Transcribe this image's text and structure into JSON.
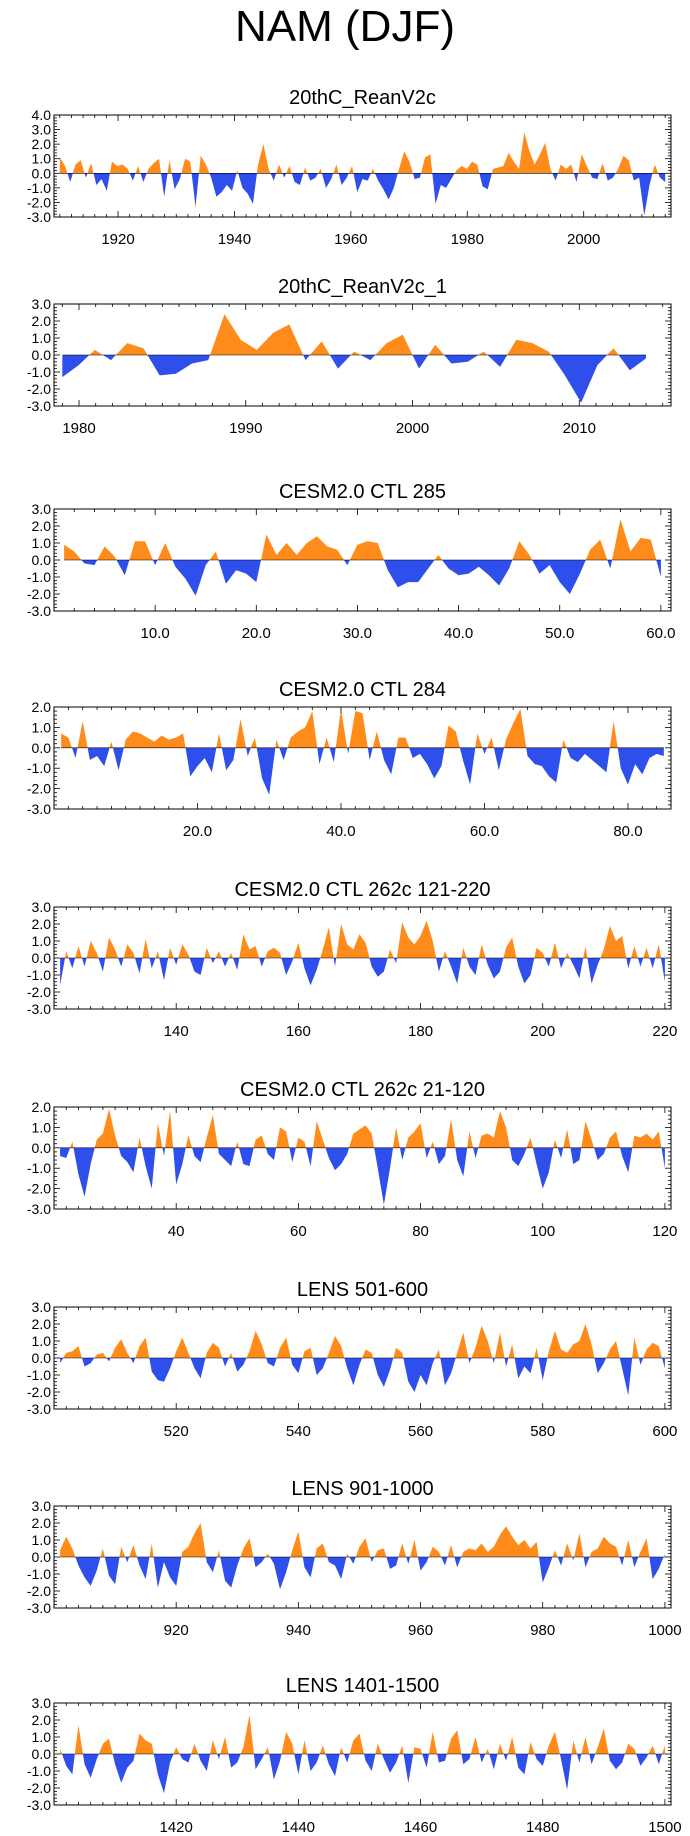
{
  "figure_title": "NAM (DJF)",
  "colors": {
    "positive": "#FF8C1A",
    "negative": "#2E4FEB",
    "frame": "#000000"
  },
  "chart_data": [
    {
      "type": "area",
      "title": "20thC_ReanV2c",
      "x_start": 1910,
      "x_end": 2014,
      "xlim": [
        1909,
        2015
      ],
      "xticks": [
        1920,
        1940,
        1960,
        1980,
        2000
      ],
      "xtick_labels": [
        "1920",
        "1940",
        "1960",
        "1980",
        "2000"
      ],
      "ylim": [
        -3,
        4
      ],
      "yticks": [
        4,
        3,
        2,
        1,
        0,
        -1,
        -2,
        -3
      ],
      "ytick_labels": [
        "4.0",
        "3.0",
        "2.0",
        "1.0",
        "0.0",
        "-1.0",
        "-2.0",
        "-3.0"
      ],
      "values": [
        1.1,
        0.5,
        -0.6,
        0.6,
        0.9,
        -0.3,
        0.7,
        -0.8,
        -0.4,
        -1.2,
        0.8,
        0.5,
        0.6,
        0.3,
        -0.5,
        0.5,
        -0.6,
        0.3,
        0.7,
        1.0,
        -1.6,
        0.9,
        -1.1,
        -0.4,
        1.0,
        0.8,
        -2.3,
        1.2,
        0.6,
        -0.3,
        -1.6,
        -1.3,
        -0.8,
        -1.2,
        0.2,
        -1.0,
        -1.4,
        -2.1,
        0.6,
        2.0,
        0.3,
        -0.5,
        0.6,
        -0.3,
        0.5,
        -0.6,
        -0.8,
        0.4,
        -0.5,
        -0.3,
        0.3,
        -1.0,
        -0.4,
        0.6,
        -0.8,
        -0.3,
        0.5,
        -1.3,
        -0.4,
        -0.5,
        0.3,
        -0.5,
        -1.1,
        -1.8,
        -1.0,
        0.3,
        1.5,
        0.8,
        -0.4,
        -0.3,
        1.1,
        1.3,
        -2.1,
        -0.8,
        -1.0,
        -0.4,
        0.2,
        0.5,
        0.3,
        0.8,
        0.6,
        -0.9,
        -1.1,
        0.3,
        0.4,
        0.5,
        1.4,
        0.8,
        0.3,
        2.8,
        1.5,
        0.6,
        1.3,
        2.1,
        0.3,
        -0.5,
        0.6,
        0.3,
        0.6,
        -0.6,
        1.3,
        0.5,
        -0.3,
        -0.4,
        0.7,
        -0.5,
        -0.3,
        0.3,
        1.2,
        0.9,
        -0.5,
        -0.3,
        -2.9,
        -0.8,
        0.6,
        -0.3,
        -0.6
      ]
    },
    {
      "type": "area",
      "title": "20thC_ReanV2c_1",
      "x_start": 1979,
      "x_end": 2014,
      "xlim": [
        1978.5,
        2015.5
      ],
      "xticks": [
        1980,
        1990,
        2000,
        2010
      ],
      "xtick_labels": [
        "1980",
        "1990",
        "2000",
        "2010"
      ],
      "ylim": [
        -3,
        3
      ],
      "yticks": [
        3,
        2,
        1,
        0,
        -1,
        -2,
        -3
      ],
      "ytick_labels": [
        "3.0",
        "2.0",
        "1.0",
        "0.0",
        "-1.0",
        "-2.0",
        "-3.0"
      ],
      "values": [
        -1.3,
        -0.6,
        0.3,
        -0.3,
        0.7,
        0.4,
        -1.2,
        -1.1,
        -0.5,
        -0.3,
        2.4,
        0.9,
        0.3,
        1.3,
        1.8,
        -0.3,
        0.8,
        -0.8,
        0.2,
        -0.3,
        0.7,
        1.2,
        -0.8,
        0.6,
        -0.5,
        -0.4,
        0.2,
        -0.7,
        0.9,
        0.7,
        0.2,
        -1.2,
        -2.8,
        -0.6,
        0.4,
        -0.9,
        -0.2
      ]
    },
    {
      "type": "area",
      "title": "CESM2.0 CTL 285",
      "x_start": 1,
      "x_end": 60,
      "xlim": [
        0,
        61
      ],
      "xticks": [
        10,
        20,
        30,
        40,
        50,
        60
      ],
      "xtick_labels": [
        "10.0",
        "20.0",
        "30.0",
        "40.0",
        "50.0",
        "60.0"
      ],
      "ylim": [
        -3,
        3
      ],
      "yticks": [
        3,
        2,
        1,
        0,
        -1,
        -2,
        -3
      ],
      "ytick_labels": [
        "3.0",
        "2.0",
        "1.0",
        "0.0",
        "-1.0",
        "-2.0",
        "-3.0"
      ],
      "values": [
        0.9,
        0.5,
        -0.2,
        -0.3,
        0.8,
        0.2,
        -0.9,
        1.1,
        1.1,
        -0.3,
        1.0,
        -0.4,
        -1.1,
        -2.1,
        -0.3,
        0.5,
        -1.4,
        -0.6,
        -0.8,
        -1.3,
        1.5,
        0.3,
        1.0,
        0.3,
        1.0,
        1.4,
        0.8,
        0.6,
        -0.3,
        0.9,
        1.1,
        1.0,
        -0.6,
        -1.6,
        -1.3,
        -1.3,
        -0.5,
        0.3,
        -0.5,
        -0.9,
        -0.8,
        -0.4,
        -0.9,
        -1.5,
        -0.5,
        1.1,
        0.3,
        -0.8,
        -0.3,
        -1.3,
        -2.0,
        -0.8,
        0.6,
        1.2,
        -0.5,
        2.4,
        0.5,
        1.3,
        1.2,
        -1.0
      ]
    },
    {
      "type": "area",
      "title": "CESM2.0 CTL 284",
      "x_start": 1,
      "x_end": 85,
      "xlim": [
        0,
        86
      ],
      "xticks": [
        20,
        40,
        60,
        80
      ],
      "xtick_labels": [
        "20.0",
        "40.0",
        "60.0",
        "80.0"
      ],
      "ylim": [
        -3,
        2
      ],
      "yticks": [
        2,
        1,
        0,
        -1,
        -2,
        -3
      ],
      "ytick_labels": [
        "2.0",
        "1.0",
        "0.0",
        "-1.0",
        "-2.0",
        "-3.0"
      ],
      "values": [
        0.7,
        0.5,
        -0.5,
        1.3,
        -0.6,
        -0.4,
        -0.9,
        0.3,
        -1.1,
        0.4,
        0.8,
        0.7,
        0.5,
        0.3,
        0.6,
        0.4,
        0.5,
        0.7,
        -1.4,
        -0.9,
        -0.5,
        -1.2,
        0.7,
        -1.1,
        -0.6,
        1.4,
        -0.4,
        0.5,
        -1.5,
        -2.3,
        0.4,
        -0.6,
        0.5,
        0.8,
        1.0,
        1.8,
        -0.8,
        0.5,
        -0.7,
        1.9,
        -0.3,
        1.8,
        1.7,
        -0.6,
        0.8,
        -0.6,
        -1.3,
        0.5,
        0.5,
        -0.5,
        -0.3,
        -0.8,
        -1.5,
        -0.9,
        1.1,
        0.8,
        -0.6,
        -1.8,
        0.7,
        -0.3,
        0.5,
        -1.1,
        0.4,
        1.2,
        1.9,
        -0.4,
        -0.8,
        -0.9,
        -1.4,
        -1.7,
        0.4,
        -0.5,
        -0.7,
        -0.3,
        -0.6,
        -0.9,
        -1.2,
        1.3,
        -1.0,
        -1.8,
        -0.8,
        -1.3,
        -0.5,
        -0.3,
        -0.4
      ]
    },
    {
      "type": "area",
      "title": "CESM2.0 CTL 262c 121-220",
      "x_start": 121,
      "x_end": 220,
      "xlim": [
        120,
        221
      ],
      "xticks": [
        140,
        160,
        180,
        200,
        220
      ],
      "xtick_labels": [
        "140",
        "160",
        "180",
        "200",
        "220"
      ],
      "ylim": [
        -3,
        3
      ],
      "yticks": [
        3,
        2,
        1,
        0,
        -1,
        -2,
        -3
      ],
      "ytick_labels": [
        "3.0",
        "2.0",
        "1.0",
        "0.0",
        "-1.0",
        "-2.0",
        "-3.0"
      ],
      "values": [
        -1.6,
        0.4,
        -0.6,
        0.7,
        -0.5,
        1.0,
        0.3,
        -0.8,
        1.2,
        0.5,
        -0.5,
        0.8,
        0.3,
        -0.9,
        1.1,
        -0.6,
        0.4,
        -1.3,
        0.6,
        -0.4,
        0.8,
        0.2,
        -0.8,
        -1.0,
        0.6,
        -0.3,
        0.4,
        -0.5,
        0.3,
        -0.7,
        1.4,
        0.5,
        0.7,
        -0.5,
        0.4,
        0.6,
        0.3,
        -1.0,
        -0.2,
        0.9,
        -0.6,
        -1.6,
        -0.7,
        0.5,
        1.8,
        -0.5,
        2.0,
        0.8,
        0.5,
        1.4,
        0.9,
        -0.5,
        -1.1,
        -0.8,
        0.5,
        -0.3,
        2.1,
        1.2,
        0.8,
        1.3,
        2.2,
        1.0,
        -0.8,
        0.4,
        -0.5,
        -1.5,
        0.6,
        -0.5,
        -1.0,
        0.8,
        -0.4,
        -1.2,
        -0.8,
        0.6,
        1.2,
        -0.5,
        -1.5,
        -1.0,
        0.6,
        0.3,
        -0.5,
        0.9,
        -0.6,
        0.3,
        -0.4,
        -1.2,
        0.7,
        -1.5,
        -0.4,
        0.5,
        1.9,
        1.0,
        1.3,
        -0.6,
        0.7,
        -0.5,
        0.6,
        -0.6,
        0.8,
        -1.4
      ]
    },
    {
      "type": "area",
      "title": "CESM2.0 CTL 262c 21-120",
      "x_start": 21,
      "x_end": 120,
      "xlim": [
        20,
        121
      ],
      "xticks": [
        40,
        60,
        80,
        100,
        120
      ],
      "xtick_labels": [
        "40",
        "60",
        "80",
        "100",
        "120"
      ],
      "ylim": [
        -3,
        2
      ],
      "yticks": [
        2,
        1,
        0,
        -1,
        -2,
        -3
      ],
      "ytick_labels": [
        "2.0",
        "1.0",
        "0.0",
        "-1.0",
        "-2.0",
        "-3.0"
      ],
      "values": [
        -0.4,
        -0.5,
        0.3,
        -1.3,
        -2.4,
        -0.8,
        0.4,
        0.7,
        1.9,
        0.6,
        -0.4,
        -0.7,
        -1.2,
        0.5,
        -0.9,
        -2.0,
        1.2,
        -0.4,
        1.8,
        -1.8,
        -0.8,
        0.6,
        -0.4,
        -0.7,
        0.5,
        1.6,
        -0.3,
        -0.6,
        -0.9,
        0.3,
        -0.8,
        -0.9,
        0.4,
        0.6,
        -0.3,
        -0.6,
        1.0,
        0.8,
        -0.7,
        0.5,
        0.3,
        -0.9,
        1.3,
        0.4,
        -0.5,
        -1.1,
        -0.8,
        -0.3,
        0.7,
        0.9,
        1.1,
        0.7,
        -1.0,
        -2.8,
        -1.0,
        1.0,
        -0.6,
        0.5,
        0.8,
        1.2,
        -0.5,
        0.3,
        -0.8,
        -0.4,
        1.4,
        -0.6,
        -1.4,
        0.8,
        -0.5,
        0.6,
        0.7,
        0.5,
        1.8,
        1.0,
        -0.6,
        -0.9,
        -0.3,
        0.5,
        -0.8,
        -2.0,
        -1.2,
        0.4,
        -0.5,
        0.9,
        -0.8,
        -0.6,
        1.3,
        0.4,
        -0.6,
        -0.3,
        0.5,
        0.8,
        -0.4,
        -1.2,
        0.6,
        0.5,
        0.7,
        0.4,
        0.8,
        -1.0
      ]
    },
    {
      "type": "area",
      "title": "LENS 501-600",
      "x_start": 501,
      "x_end": 600,
      "xlim": [
        500,
        601
      ],
      "xticks": [
        520,
        540,
        560,
        580,
        600
      ],
      "xtick_labels": [
        "520",
        "540",
        "560",
        "580",
        "600"
      ],
      "ylim": [
        -3,
        3
      ],
      "yticks": [
        3,
        2,
        1,
        0,
        -1,
        -2,
        -3
      ],
      "ytick_labels": [
        "3.0",
        "2.0",
        "1.0",
        "0.0",
        "-1.0",
        "-2.0",
        "-3.0"
      ],
      "values": [
        -0.3,
        0.3,
        0.4,
        0.7,
        -0.5,
        -0.3,
        0.2,
        0.3,
        -0.2,
        0.6,
        1.1,
        0.3,
        -0.3,
        0.7,
        1.2,
        -0.8,
        -1.3,
        -1.4,
        -0.6,
        0.4,
        1.2,
        0.3,
        -0.6,
        -1.2,
        0.3,
        0.9,
        0.6,
        -0.5,
        0.3,
        -0.8,
        -0.4,
        0.4,
        1.6,
        0.8,
        -0.3,
        -0.5,
        0.6,
        1.2,
        -0.4,
        -0.9,
        0.4,
        0.6,
        -1.0,
        -0.6,
        0.3,
        1.3,
        0.7,
        -0.6,
        -1.6,
        -0.4,
        0.5,
        0.3,
        -1.0,
        -1.7,
        -0.7,
        0.6,
        0.3,
        -1.4,
        -2.0,
        -1.0,
        -1.6,
        -0.3,
        0.5,
        -1.6,
        -0.9,
        0.3,
        1.5,
        -0.3,
        0.6,
        1.9,
        1.0,
        -0.3,
        1.5,
        -0.5,
        0.8,
        -1.2,
        -0.5,
        -0.9,
        0.6,
        -1.3,
        0.4,
        1.6,
        0.5,
        0.3,
        0.8,
        1.0,
        2.0,
        0.8,
        -0.9,
        -0.3,
        0.5,
        1.0,
        -0.6,
        -2.2,
        1.2,
        -0.4,
        0.5,
        0.9,
        0.7,
        -0.6
      ]
    },
    {
      "type": "area",
      "title": "LENS 901-1000",
      "x_start": 901,
      "x_end": 1000,
      "xlim": [
        900,
        1001
      ],
      "xticks": [
        920,
        940,
        960,
        980,
        1000
      ],
      "xtick_labels": [
        "920",
        "940",
        "960",
        "980",
        "1000"
      ],
      "ylim": [
        -3,
        3
      ],
      "yticks": [
        3,
        2,
        1,
        0,
        -1,
        -2,
        -3
      ],
      "ytick_labels": [
        "3.0",
        "2.0",
        "1.0",
        "0.0",
        "-1.0",
        "-2.0",
        "-3.0"
      ],
      "values": [
        0.4,
        1.2,
        0.5,
        -0.5,
        -1.2,
        -1.7,
        -0.8,
        0.5,
        -1.1,
        -1.6,
        0.6,
        -0.3,
        0.7,
        -0.5,
        -1.3,
        0.8,
        -1.8,
        -0.3,
        -1.2,
        -1.7,
        0.3,
        0.6,
        1.4,
        2.0,
        -0.3,
        -0.9,
        0.4,
        -1.4,
        -1.8,
        -0.5,
        0.5,
        1.1,
        -0.6,
        -0.3,
        0.2,
        -0.4,
        -1.9,
        -0.9,
        0.4,
        1.5,
        -0.6,
        -1.2,
        0.5,
        0.8,
        -0.3,
        -0.5,
        -1.3,
        0.2,
        -0.4,
        0.6,
        1.1,
        -0.3,
        0.4,
        0.5,
        -0.7,
        -0.5,
        0.8,
        -0.4,
        1.0,
        -0.8,
        -0.3,
        0.6,
        0.3,
        -0.5,
        0.7,
        -0.6,
        0.3,
        0.5,
        0.4,
        0.8,
        0.3,
        0.6,
        1.3,
        1.8,
        1.2,
        0.7,
        1.0,
        0.5,
        0.9,
        -1.5,
        -0.6,
        0.4,
        -0.5,
        0.8,
        -0.2,
        1.4,
        -0.6,
        0.3,
        0.5,
        1.2,
        0.8,
        0.6,
        -0.5,
        1.0,
        -0.6,
        0.3,
        1.1,
        -1.3,
        -0.7,
        0.2
      ]
    },
    {
      "type": "area",
      "title": "LENS 1401-1500",
      "x_start": 1401,
      "x_end": 1500,
      "xlim": [
        1400,
        1501
      ],
      "xticks": [
        1420,
        1440,
        1460,
        1480,
        1500
      ],
      "xtick_labels": [
        "1420",
        "1440",
        "1460",
        "1480",
        "1500"
      ],
      "ylim": [
        -3,
        3
      ],
      "yticks": [
        3,
        2,
        1,
        0,
        -1,
        -2,
        -3
      ],
      "ytick_labels": [
        "3.0",
        "2.0",
        "1.0",
        "0.0",
        "-1.0",
        "-2.0",
        "-3.0"
      ],
      "values": [
        0.3,
        -0.7,
        -1.2,
        1.7,
        -0.6,
        -1.4,
        -0.3,
        0.6,
        0.9,
        -0.6,
        -1.7,
        -0.8,
        -0.4,
        1.2,
        0.8,
        0.6,
        -1.2,
        -2.3,
        -0.5,
        0.4,
        -0.3,
        -0.5,
        0.6,
        -0.4,
        -1.0,
        0.8,
        -0.3,
        1.0,
        -0.8,
        -0.5,
        0.4,
        2.3,
        -0.9,
        -0.3,
        0.4,
        -1.5,
        -0.4,
        1.3,
        0.6,
        -1.2,
        0.8,
        -1.0,
        -0.5,
        0.5,
        -0.6,
        -1.3,
        0.4,
        -0.5,
        0.8,
        1.2,
        -0.4,
        -1.0,
        0.6,
        -0.3,
        -1.1,
        -0.5,
        0.5,
        -1.7,
        0.4,
        0.3,
        -0.8,
        1.3,
        -0.5,
        -0.4,
        0.9,
        1.4,
        -0.6,
        -0.3,
        1.0,
        -0.5,
        0.3,
        -0.9,
        0.6,
        -0.4,
        1.0,
        -0.8,
        -1.2,
        0.7,
        -0.3,
        -0.7,
        0.5,
        1.3,
        -0.3,
        -2.1,
        0.8,
        -0.5,
        1.0,
        -0.6,
        0.4,
        1.5,
        -0.4,
        -0.9,
        -0.5,
        0.6,
        0.3,
        -0.7,
        -0.2,
        0.5,
        -0.6,
        0.5
      ]
    }
  ]
}
